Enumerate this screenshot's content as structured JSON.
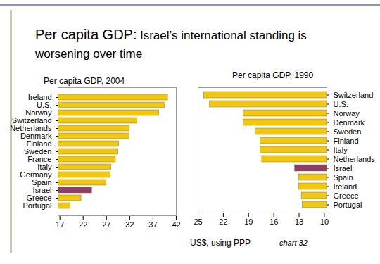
{
  "title": "Per capita GDP:",
  "subtitle": "Israel’s international standing is worsening over time",
  "x_label": "US$, using PPP",
  "caption": "chart 32",
  "chart_data": [
    {
      "type": "bar",
      "orientation": "horizontal",
      "title": "Per capita GDP, 2004",
      "categories": [
        "Ireland",
        "U.S.",
        "Norway",
        "Switzerland",
        "Netherlands",
        "Denmark",
        "Finland",
        "Sweden",
        "France",
        "Italy",
        "Germany",
        "Spain",
        "Israel",
        "Greece",
        "Portugal"
      ],
      "values": [
        40.2,
        39.5,
        38.3,
        33.6,
        32.0,
        31.9,
        29.7,
        29.4,
        29.0,
        28.0,
        27.9,
        27.0,
        23.9,
        21.6,
        19.3
      ],
      "colors": [
        "#f0c814",
        "#f0c814",
        "#f0c814",
        "#f0c814",
        "#f0c814",
        "#f0c814",
        "#f0c814",
        "#f0c814",
        "#f0c814",
        "#f0c814",
        "#f0c814",
        "#f0c814",
        "#8e3b6a",
        "#f0c814",
        "#f0c814"
      ],
      "xlim": [
        16.6,
        42
      ],
      "xticks": [
        17,
        22,
        27,
        32,
        37,
        42
      ]
    },
    {
      "type": "bar",
      "orientation": "horizontal",
      "title": "Per capita GDP, 1990",
      "categories": [
        "Switzerland",
        "U.S.",
        "Norway",
        "Denmark",
        "Sweden",
        "Finland",
        "Italy",
        "Netherlands",
        "Israel",
        "Spain",
        "Ireland",
        "Greece",
        "Portugal"
      ],
      "values": [
        24.3,
        23.6,
        19.6,
        19.6,
        18.2,
        17.6,
        17.6,
        17.4,
        13.5,
        13.0,
        13.0,
        12.7,
        12.6
      ],
      "colors": [
        "#f0c814",
        "#f0c814",
        "#f0c814",
        "#f0c814",
        "#f0c814",
        "#f0c814",
        "#f0c814",
        "#f0c814",
        "#8e3b6a",
        "#f0c814",
        "#f0c814",
        "#f0c814",
        "#f0c814"
      ],
      "xlim": [
        25,
        9.7
      ],
      "xticks": [
        25,
        22,
        19,
        16,
        13,
        10
      ]
    }
  ]
}
